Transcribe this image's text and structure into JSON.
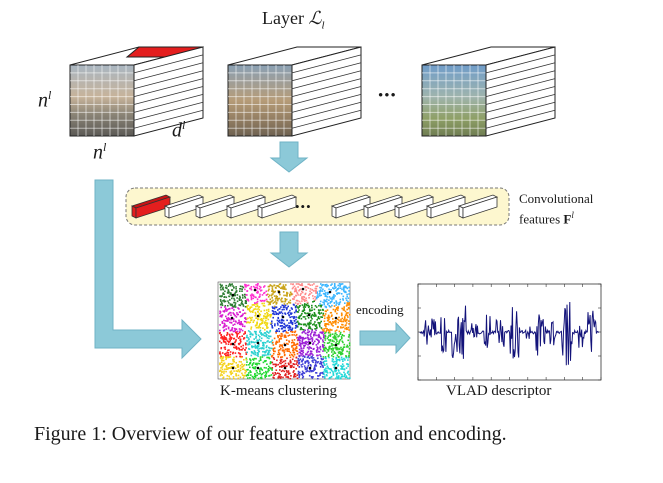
{
  "diagram": {
    "layer_title_prefix": "Layer ",
    "layer_title_symbol": "ℒ",
    "layer_title_sub": "l",
    "dim_n_vertical": "n",
    "dim_n_horizontal": "n",
    "dim_d": "d",
    "dim_superscript": "l",
    "ellipsis": "•••",
    "conv_features_line1": "Convolutional",
    "conv_features_line2": "features ",
    "conv_features_symbol": "F",
    "conv_features_sup": "l",
    "encoding_label": "encoding",
    "kmeans_label": "K-means clustering",
    "vlad_label": "VLAD descriptor",
    "caption": "Figure 1: Overview of our feature extraction and encoding.",
    "colors": {
      "highlight_red": "#e41e1e",
      "arrow_blue": "#8cc9d8",
      "feature_panel": "#fdf7cf",
      "vlad_line": "#13137a"
    }
  }
}
